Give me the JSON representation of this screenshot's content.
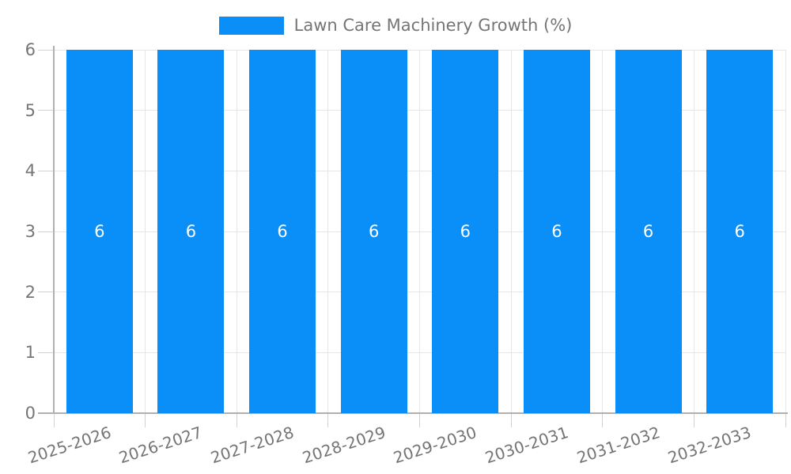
{
  "chart_data": {
    "type": "bar",
    "title": "Lawn Care Machinery Growth (%)",
    "categories": [
      "2025-2026",
      "2026-2027",
      "2027-2028",
      "2028-2029",
      "2029-2030",
      "2030-2031",
      "2031-2032",
      "2032-2033"
    ],
    "values": [
      6,
      6,
      6,
      6,
      6,
      6,
      6,
      6
    ],
    "value_labels": [
      "6",
      "6",
      "6",
      "6",
      "6",
      "6",
      "6",
      "6"
    ],
    "xlabel": "",
    "ylabel": "",
    "ylim": [
      0,
      6
    ],
    "yticks": [
      0,
      1,
      2,
      3,
      4,
      5,
      6
    ],
    "grid": true,
    "legend_position": "top-center",
    "colors": {
      "bar": "#0a8ff8",
      "grid": "#e6e6e6",
      "axis": "#b0b0b0",
      "tick": "#d2d2d2",
      "text": "#757575",
      "value_label": "#ffffff",
      "background": "#ffffff"
    }
  }
}
